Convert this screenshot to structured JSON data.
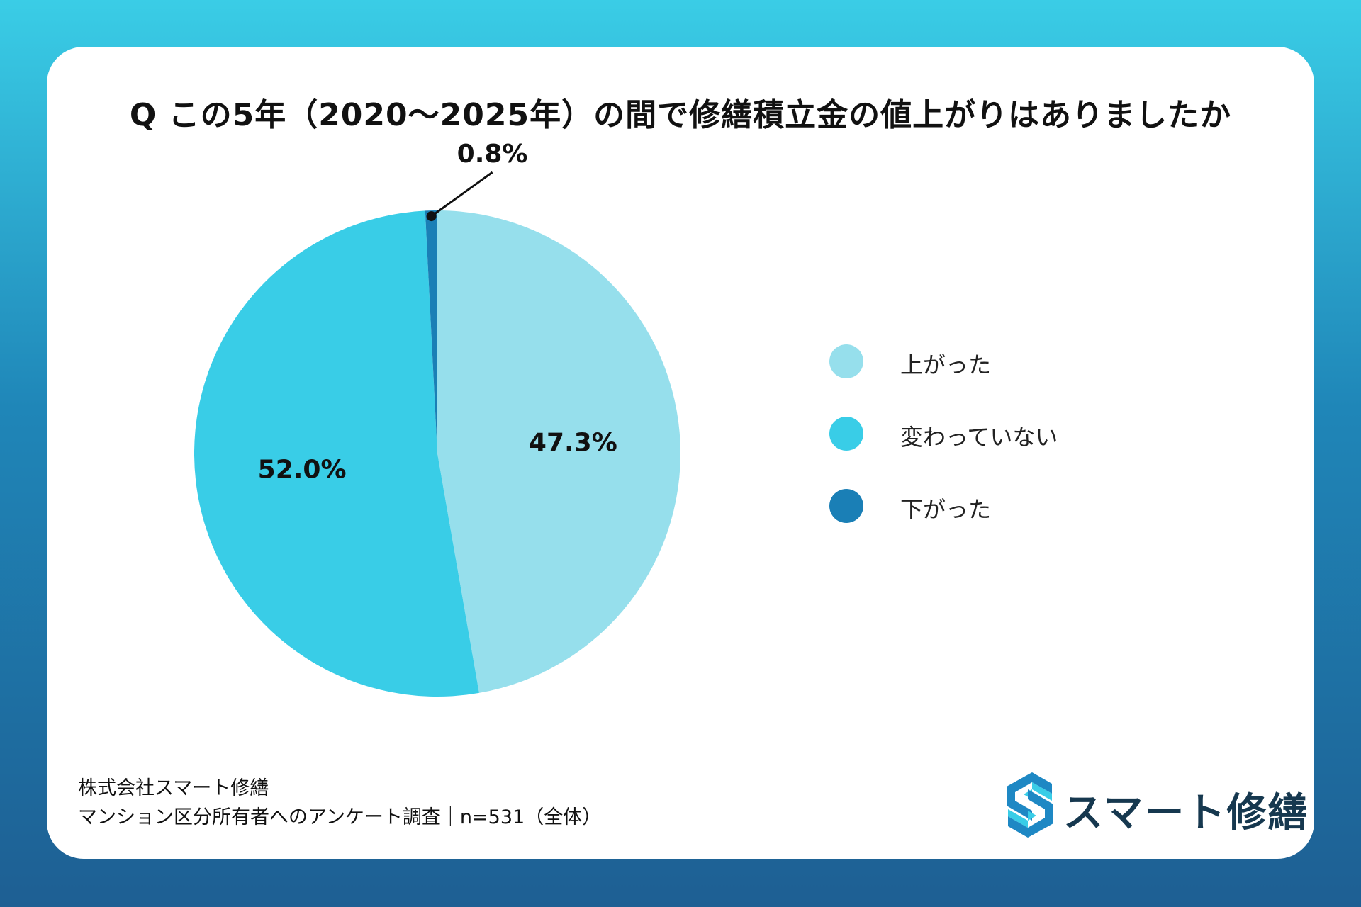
{
  "title": "Q この5年（2020〜2025年）の間で修繕積立金の値上がりはありましたか",
  "chart_data": {
    "type": "pie",
    "title": "Q この5年（2020〜2025年）の間で修繕積立金の値上がりはありましたか",
    "categories": [
      "上がった",
      "変わっていない",
      "下がった"
    ],
    "values": [
      47.3,
      52.0,
      0.8
    ],
    "labels": [
      "47.3%",
      "52.0%",
      "0.8%"
    ],
    "colors": [
      "#96dfec",
      "#39cde7",
      "#1a7fb6"
    ],
    "legend_position": "right"
  },
  "footer": {
    "company": "株式会社スマート修繕",
    "survey": "マンション区分所有者へのアンケート調査｜n=531（全体）"
  },
  "logo": {
    "text": "スマート修繕"
  }
}
